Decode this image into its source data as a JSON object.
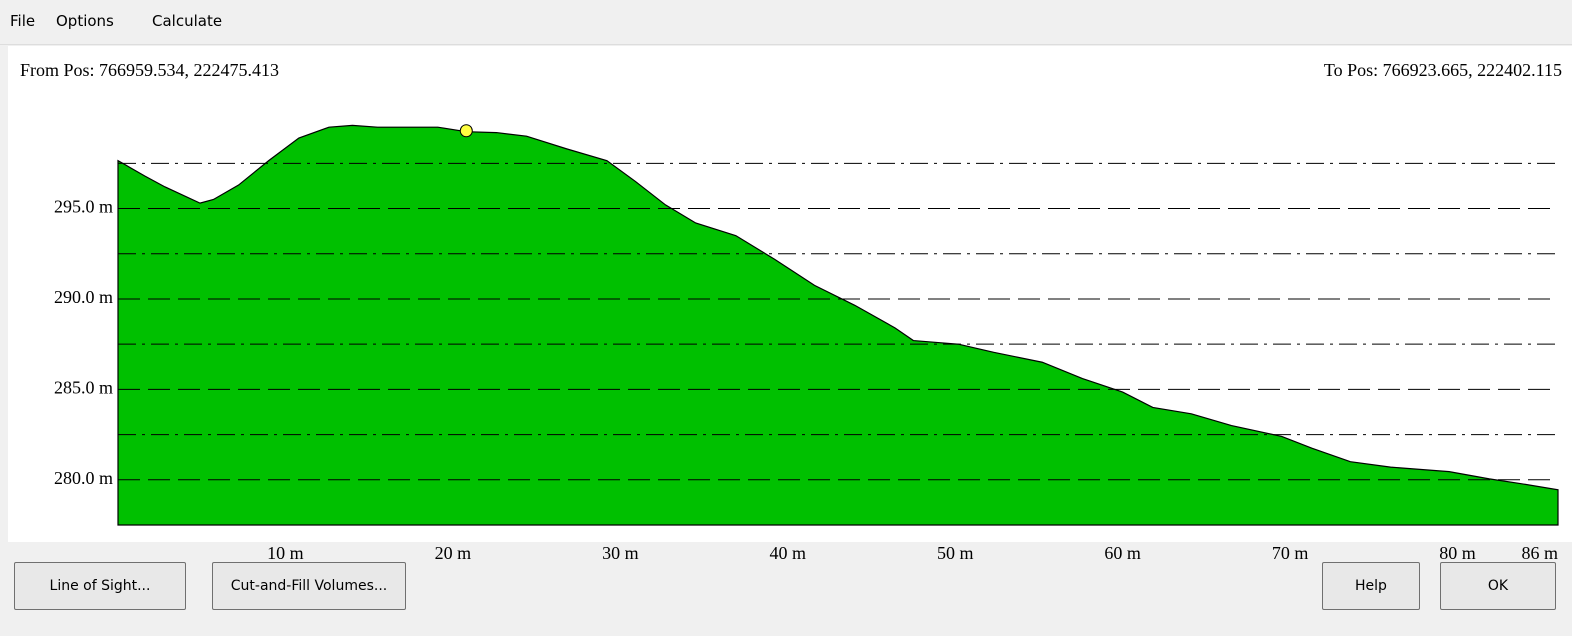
{
  "menu": [
    "File",
    "Options",
    "Calculate"
  ],
  "from_pos": "From Pos: 766959.534, 222475.413",
  "to_pos": "To Pos: 766923.665, 222402.115",
  "chart_data": {
    "type": "area",
    "x": [
      0,
      1.6,
      2.8,
      4.9,
      5.7,
      7.2,
      9.0,
      10.8,
      12.6,
      14.0,
      15.5,
      19.1,
      20.8,
      22.6,
      24.4,
      26.8,
      29.2,
      30.9,
      32.7,
      34.5,
      36.9,
      39.2,
      41.6,
      44.0,
      46.4,
      47.5,
      50.2,
      52.3,
      55.2,
      57.6,
      60.0,
      61.8,
      64.1,
      66.5,
      69.5,
      71.3,
      73.6,
      76.0,
      79.5,
      81.9,
      83.7,
      86
    ],
    "values": [
      297.65,
      296.8,
      296.2,
      295.3,
      295.5,
      296.3,
      297.65,
      298.9,
      299.5,
      299.6,
      299.5,
      299.5,
      299.25,
      299.2,
      299.0,
      298.3,
      297.65,
      296.5,
      295.2,
      294.2,
      293.5,
      292.2,
      290.75,
      289.65,
      288.4,
      287.7,
      287.5,
      287.05,
      286.5,
      285.6,
      284.85,
      284.0,
      283.65,
      283.0,
      282.4,
      281.75,
      281.0,
      280.7,
      280.45,
      280.05,
      279.8,
      279.45
    ],
    "color": "#00c000",
    "marker": {
      "x": 20.8,
      "y": 299.3,
      "color": "#ffff40"
    },
    "xlim": [
      0,
      86
    ],
    "ylim": [
      277.5,
      301.5
    ],
    "xticks": [
      {
        "value": 10,
        "label": "10 m"
      },
      {
        "value": 20,
        "label": "20 m"
      },
      {
        "value": 30,
        "label": "30 m"
      },
      {
        "value": 40,
        "label": "40 m"
      },
      {
        "value": 50,
        "label": "50 m"
      },
      {
        "value": 60,
        "label": "60 m"
      },
      {
        "value": 70,
        "label": "70 m"
      },
      {
        "value": 80,
        "label": "80 m"
      },
      {
        "value": 86,
        "label": "86 m"
      }
    ],
    "yticks": [
      {
        "value": 280,
        "label": "280.0 m"
      },
      {
        "value": 285,
        "label": "285.0 m"
      },
      {
        "value": 290,
        "label": "290.0 m"
      },
      {
        "value": 295,
        "label": "295.0 m"
      }
    ],
    "minor_yticks": [
      282.5,
      287.5,
      292.5,
      297.5
    ],
    "grid": true
  },
  "buttons": [
    "Line of Sight...",
    "Cut-and-Fill Volumes...",
    "Help",
    "OK"
  ]
}
